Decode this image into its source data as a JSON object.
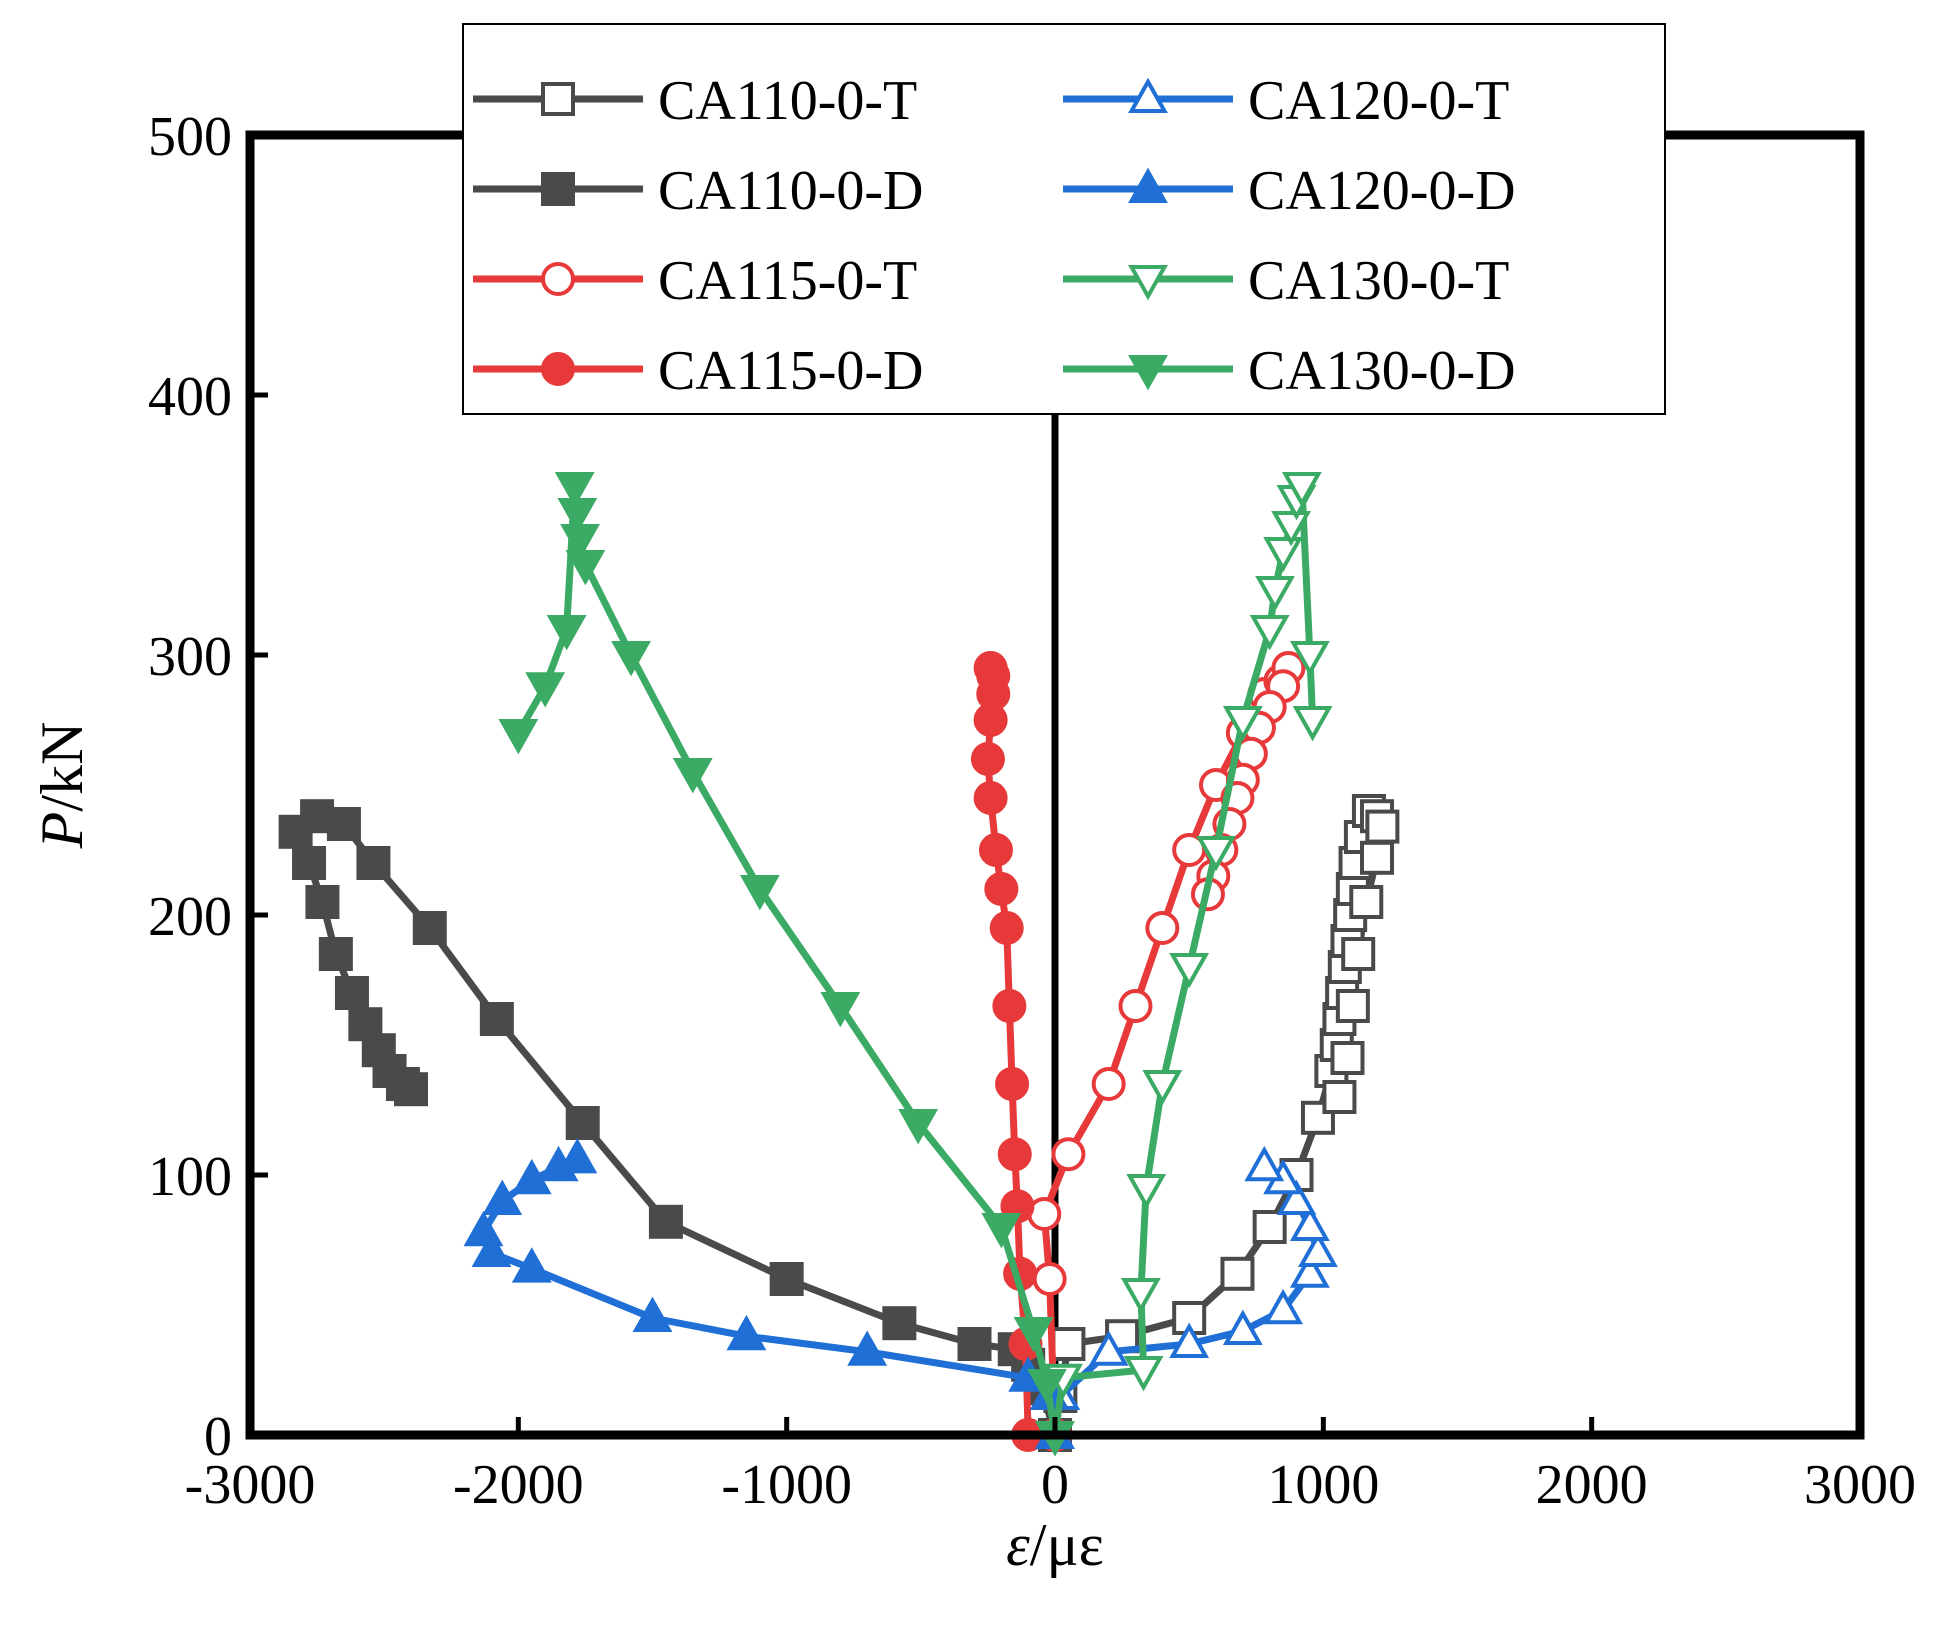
{
  "chart_data": {
    "type": "line",
    "title": "",
    "xlabel_italic": "ε",
    "xlabel_unit": "/με",
    "ylabel_italic": "P",
    "ylabel_unit": "/kN",
    "xlim": [
      -3000,
      3000
    ],
    "ylim": [
      0,
      500
    ],
    "xticks": [
      -3000,
      -2000,
      -1000,
      0,
      1000,
      2000,
      3000
    ],
    "yticks": [
      0,
      100,
      200,
      300,
      400,
      500
    ],
    "xtick_labels": [
      "-3000",
      "-2000",
      "-1000",
      "0",
      "1000",
      "2000",
      "3000"
    ],
    "ytick_labels": [
      "0",
      "100",
      "200",
      "300",
      "400",
      "500"
    ],
    "zero_line": true,
    "legend_position": "top-center",
    "series": [
      {
        "name": "CA110-0-T",
        "color": "#4a4a4a",
        "marker": "square",
        "filled": false,
        "points": [
          [
            0,
            0
          ],
          [
            20,
            15
          ],
          [
            50,
            35
          ],
          [
            250,
            38
          ],
          [
            500,
            45
          ],
          [
            680,
            62
          ],
          [
            800,
            80
          ],
          [
            900,
            100
          ],
          [
            980,
            122
          ],
          [
            1030,
            140
          ],
          [
            1050,
            150
          ],
          [
            1060,
            160
          ],
          [
            1070,
            170
          ],
          [
            1080,
            180
          ],
          [
            1090,
            190
          ],
          [
            1100,
            200
          ],
          [
            1110,
            210
          ],
          [
            1120,
            220
          ],
          [
            1140,
            230
          ],
          [
            1170,
            240
          ],
          [
            1200,
            238
          ],
          [
            1220,
            234
          ],
          [
            1200,
            222
          ],
          [
            1160,
            205
          ],
          [
            1130,
            185
          ],
          [
            1110,
            165
          ],
          [
            1090,
            145
          ],
          [
            1060,
            130
          ]
        ]
      },
      {
        "name": "CA110-0-D",
        "color": "#4a4a4a",
        "marker": "square",
        "filled": true,
        "points": [
          [
            0,
            0
          ],
          [
            -50,
            18
          ],
          [
            -100,
            27
          ],
          [
            -150,
            33
          ],
          [
            -300,
            35
          ],
          [
            -580,
            43
          ],
          [
            -1000,
            60
          ],
          [
            -1450,
            82
          ],
          [
            -1760,
            120
          ],
          [
            -2080,
            160
          ],
          [
            -2330,
            195
          ],
          [
            -2540,
            220
          ],
          [
            -2650,
            235
          ],
          [
            -2750,
            238
          ],
          [
            -2830,
            232
          ],
          [
            -2780,
            220
          ],
          [
            -2730,
            205
          ],
          [
            -2680,
            185
          ],
          [
            -2620,
            170
          ],
          [
            -2570,
            158
          ],
          [
            -2520,
            148
          ],
          [
            -2480,
            140
          ],
          [
            -2430,
            135
          ],
          [
            -2400,
            133
          ]
        ]
      },
      {
        "name": "CA115-0-T",
        "color": "#e8393a",
        "marker": "circle",
        "filled": false,
        "points": [
          [
            0,
            0
          ],
          [
            -20,
            60
          ],
          [
            -40,
            85
          ],
          [
            50,
            108
          ],
          [
            200,
            135
          ],
          [
            300,
            165
          ],
          [
            400,
            195
          ],
          [
            500,
            225
          ],
          [
            600,
            250
          ],
          [
            700,
            270
          ],
          [
            780,
            285
          ],
          [
            840,
            290
          ],
          [
            870,
            295
          ],
          [
            850,
            288
          ],
          [
            800,
            280
          ],
          [
            760,
            272
          ],
          [
            730,
            262
          ],
          [
            700,
            252
          ],
          [
            680,
            245
          ],
          [
            650,
            235
          ],
          [
            620,
            225
          ],
          [
            590,
            215
          ],
          [
            570,
            208
          ]
        ]
      },
      {
        "name": "CA115-0-D",
        "color": "#e8393a",
        "marker": "circle",
        "filled": true,
        "points": [
          [
            -100,
            0
          ],
          [
            -110,
            35
          ],
          [
            -130,
            62
          ],
          [
            -140,
            88
          ],
          [
            -150,
            108
          ],
          [
            -160,
            135
          ],
          [
            -170,
            165
          ],
          [
            -180,
            195
          ],
          [
            -200,
            210
          ],
          [
            -220,
            225
          ],
          [
            -240,
            245
          ],
          [
            -250,
            260
          ],
          [
            -240,
            275
          ],
          [
            -230,
            285
          ],
          [
            -230,
            292
          ],
          [
            -240,
            295
          ]
        ]
      },
      {
        "name": "CA120-0-T",
        "color": "#1f6fd6",
        "marker": "triangle-up",
        "filled": false,
        "points": [
          [
            0,
            0
          ],
          [
            20,
            15
          ],
          [
            200,
            32
          ],
          [
            500,
            35
          ],
          [
            700,
            40
          ],
          [
            850,
            48
          ],
          [
            950,
            62
          ],
          [
            980,
            70
          ],
          [
            950,
            80
          ],
          [
            900,
            90
          ],
          [
            850,
            98
          ],
          [
            780,
            103
          ]
        ]
      },
      {
        "name": "CA120-0-D",
        "color": "#1f6fd6",
        "marker": "triangle-up",
        "filled": true,
        "points": [
          [
            0,
            0
          ],
          [
            -20,
            15
          ],
          [
            -100,
            22
          ],
          [
            -700,
            32
          ],
          [
            -1150,
            38
          ],
          [
            -1500,
            45
          ],
          [
            -1950,
            64
          ],
          [
            -2100,
            70
          ],
          [
            -2130,
            78
          ],
          [
            -2060,
            90
          ],
          [
            -1950,
            98
          ],
          [
            -1850,
            103
          ],
          [
            -1780,
            106
          ]
        ]
      },
      {
        "name": "CA130-0-T",
        "color": "#3aaa64",
        "marker": "triangle-down",
        "filled": false,
        "points": [
          [
            0,
            0
          ],
          [
            30,
            22
          ],
          [
            330,
            25
          ],
          [
            320,
            55
          ],
          [
            340,
            95
          ],
          [
            400,
            135
          ],
          [
            500,
            180
          ],
          [
            600,
            225
          ],
          [
            700,
            275
          ],
          [
            800,
            310
          ],
          [
            820,
            325
          ],
          [
            850,
            340
          ],
          [
            880,
            350
          ],
          [
            900,
            360
          ],
          [
            920,
            365
          ],
          [
            950,
            300
          ],
          [
            960,
            275
          ]
        ]
      },
      {
        "name": "CA130-0-D",
        "color": "#3aaa64",
        "marker": "triangle-down",
        "filled": true,
        "points": [
          [
            0,
            0
          ],
          [
            -30,
            20
          ],
          [
            -80,
            40
          ],
          [
            -200,
            80
          ],
          [
            -510,
            120
          ],
          [
            -800,
            165
          ],
          [
            -1100,
            210
          ],
          [
            -1350,
            255
          ],
          [
            -1580,
            300
          ],
          [
            -1750,
            335
          ],
          [
            -1770,
            345
          ],
          [
            -1780,
            355
          ],
          [
            -1790,
            365
          ],
          [
            -1820,
            310
          ],
          [
            -1900,
            288
          ],
          [
            -2000,
            270
          ]
        ]
      }
    ]
  }
}
